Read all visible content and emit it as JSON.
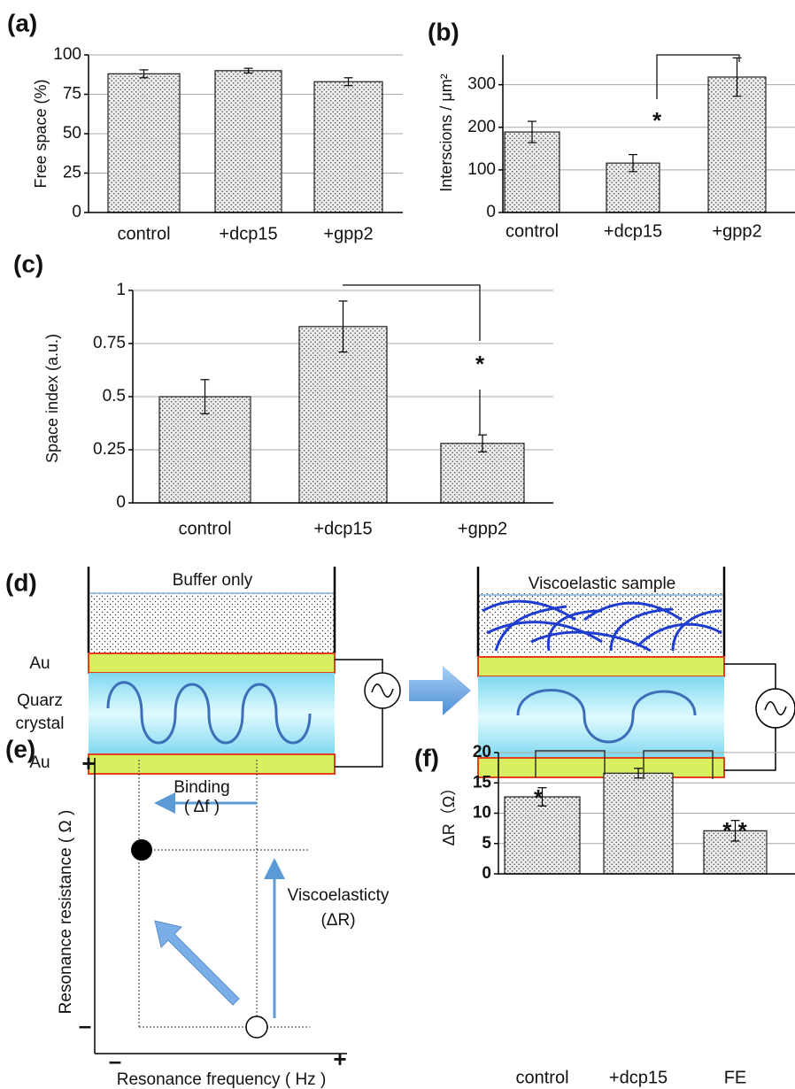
{
  "chart_data": [
    {
      "type": "bar",
      "label": "(a)",
      "y_label": "Free space (%)",
      "categories": [
        "control",
        "+dcp15",
        "+gpp2"
      ],
      "values": [
        88,
        90,
        83
      ],
      "errors": [
        2.5,
        1.5,
        2.5
      ],
      "color": "#ececec",
      "ylim": [
        0,
        100
      ],
      "yticks": [
        0,
        25,
        50,
        75,
        100
      ],
      "grid": true,
      "annotations": []
    },
    {
      "type": "bar",
      "label": "(b)",
      "y_label": "Interscions / μm²",
      "categories": [
        "control",
        "+dcp15",
        "+gpp2"
      ],
      "values": [
        189,
        116,
        318
      ],
      "errors": [
        25,
        20,
        45
      ],
      "color": "#ececec",
      "ylim": [
        0,
        370
      ],
      "yticks": [
        0,
        100,
        200,
        300
      ],
      "grid": true,
      "annotations": [
        "*"
      ]
    },
    {
      "type": "bar",
      "label": "(c)",
      "y_label": "Space index (a.u.)",
      "categories": [
        "control",
        "+dcp15",
        "+gpp2"
      ],
      "values": [
        0.5,
        0.83,
        0.28
      ],
      "errors": [
        0.08,
        0.12,
        0.04
      ],
      "color": "#ececec",
      "ylim": [
        0,
        1
      ],
      "yticks": [
        0,
        0.25,
        0.5,
        0.75,
        1
      ],
      "grid": true,
      "annotations": [
        "*"
      ]
    },
    {
      "type": "bar",
      "label": "(f)",
      "y_label": "ΔR（Ω）",
      "categories": [
        "control",
        "+dcp15",
        "FE"
      ],
      "values": [
        12.7,
        16.6,
        7.1
      ],
      "errors": [
        1.5,
        0.8,
        1.7
      ],
      "color": "#ececec",
      "ylim": [
        0,
        20
      ],
      "yticks": [
        0,
        5,
        10,
        15,
        20
      ],
      "grid": true,
      "annotations": [
        "*",
        "* *"
      ]
    }
  ],
  "panel_d": {
    "label": "(d)",
    "left_title": "Buffer only",
    "right_title": "Viscoelastic sample",
    "top_electrode": "Au",
    "crystal": [
      "Quarz",
      "crystal"
    ],
    "bottom_electrode": "Au"
  },
  "panel_e": {
    "label": "(e)",
    "y_axis_label": "Resonance resistance ( Ω )",
    "x_axis_label": "Resonance frequency ( Hz )",
    "y_plus": "+",
    "y_minus": "–",
    "x_minus": "–",
    "x_plus": "+",
    "binding": [
      "Binding",
      "( Δf )"
    ],
    "viscoelasticity": [
      "Viscoelasticty",
      "(ΔR)"
    ]
  }
}
